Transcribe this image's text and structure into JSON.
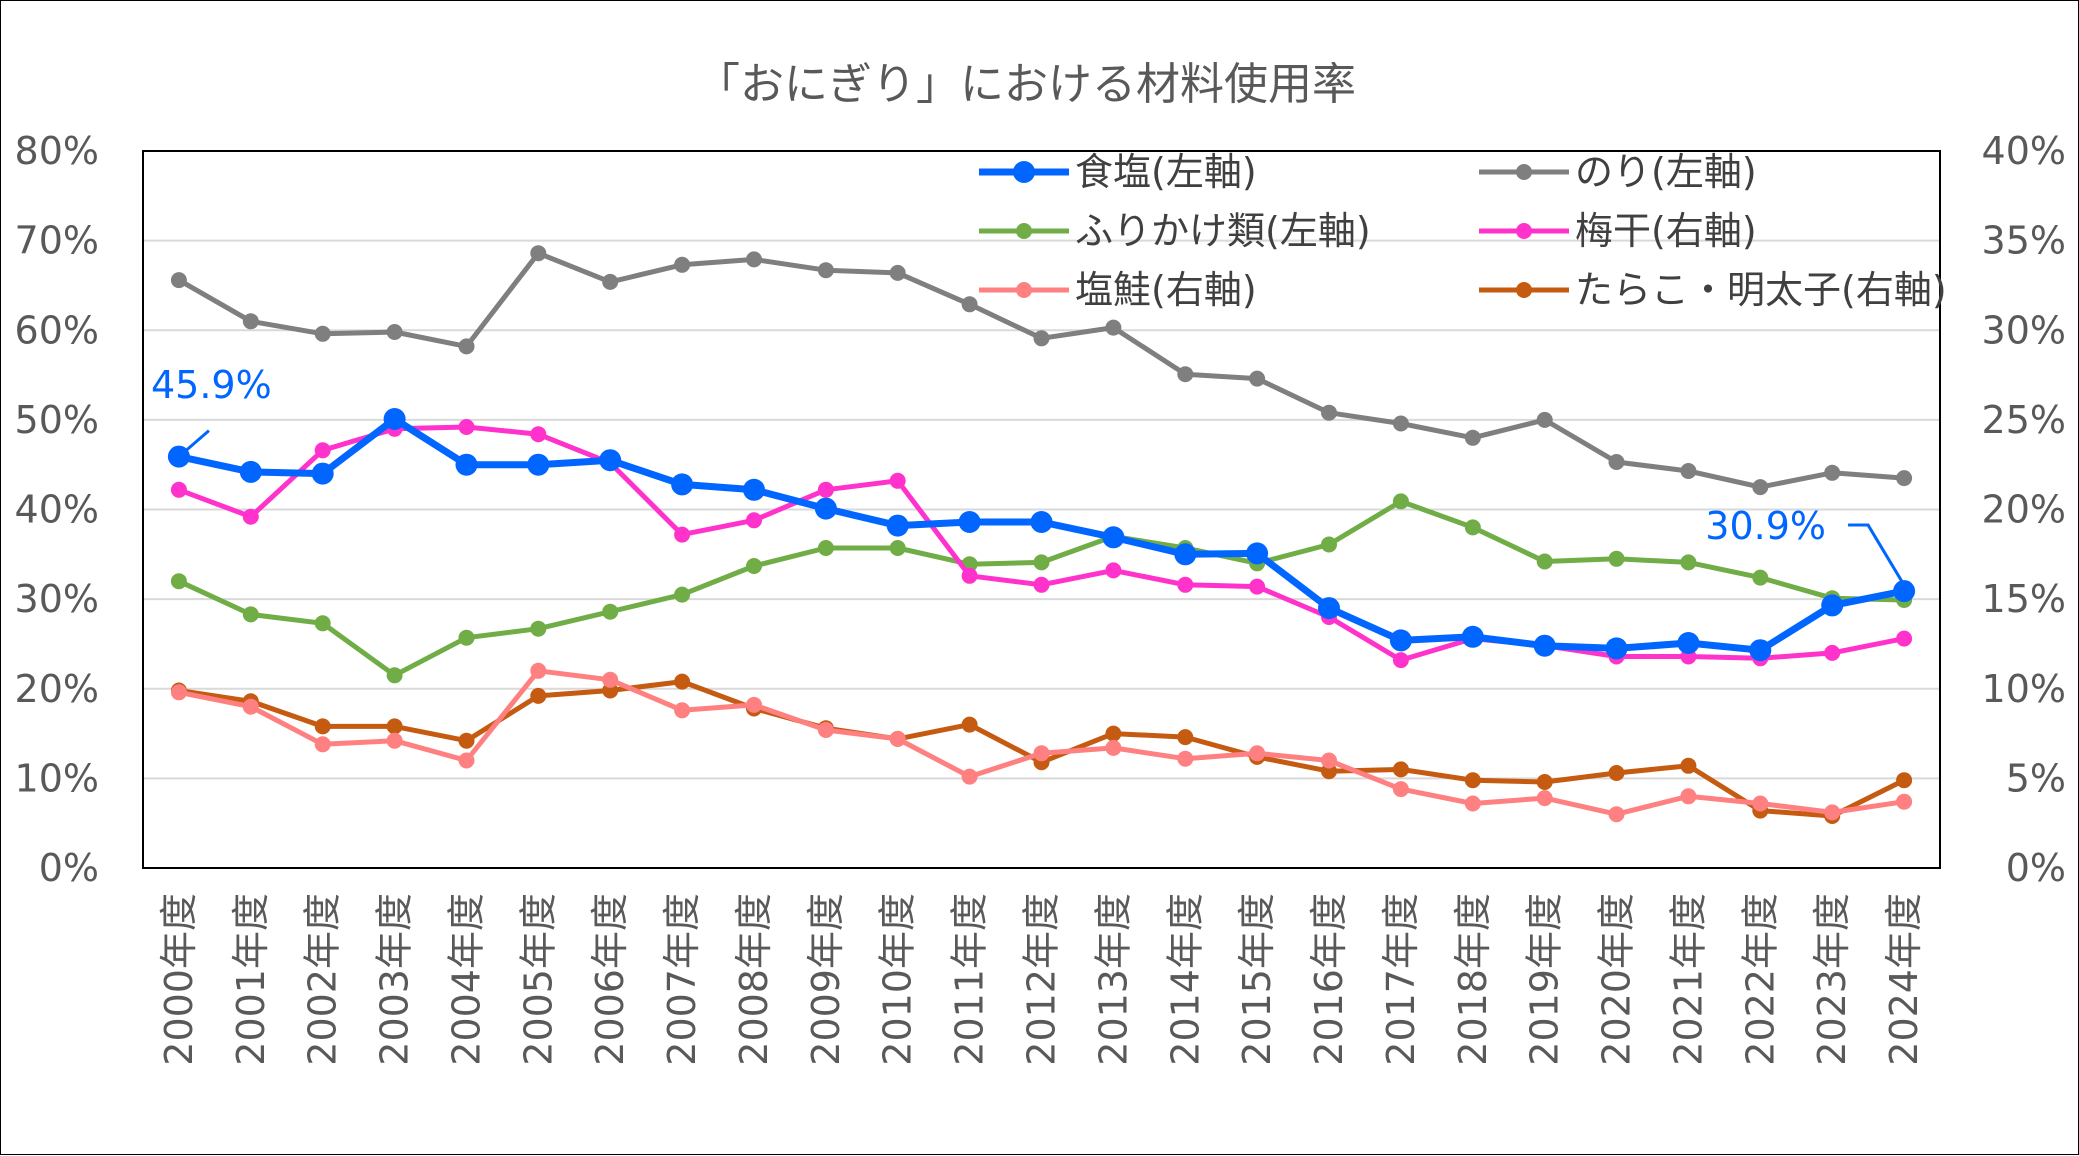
{
  "chart_data": {
    "type": "line",
    "title": "「おにぎり」における材料使用率",
    "categories": [
      "2000年度",
      "2001年度",
      "2002年度",
      "2003年度",
      "2004年度",
      "2005年度",
      "2006年度",
      "2007年度",
      "2008年度",
      "2009年度",
      "2010年度",
      "2011年度",
      "2012年度",
      "2013年度",
      "2014年度",
      "2015年度",
      "2016年度",
      "2017年度",
      "2018年度",
      "2019年度",
      "2020年度",
      "2021年度",
      "2022年度",
      "2023年度",
      "2024年度"
    ],
    "left_axis": {
      "min": 0,
      "max": 80,
      "step": 10,
      "tick_labels": [
        "0%",
        "10%",
        "20%",
        "30%",
        "40%",
        "50%",
        "60%",
        "70%",
        "80%"
      ]
    },
    "right_axis": {
      "min": 0,
      "max": 40,
      "step": 5,
      "tick_labels": [
        "0%",
        "5%",
        "10%",
        "15%",
        "20%",
        "25%",
        "30%",
        "35%",
        "40%"
      ]
    },
    "grid": true,
    "legend_position": "top-right",
    "series": [
      {
        "name": "食塩(左軸)",
        "axis": "left",
        "color": "#0066FF",
        "width": 7,
        "marker": 11,
        "values": [
          45.9,
          44.2,
          44.0,
          50.1,
          45.0,
          45.0,
          45.5,
          42.8,
          42.2,
          40.1,
          38.2,
          38.6,
          38.6,
          36.9,
          35.0,
          35.1,
          29.0,
          25.4,
          25.8,
          24.8,
          24.5,
          25.1,
          24.3,
          29.3,
          30.9
        ]
      },
      {
        "name": "のり(左軸)",
        "axis": "left",
        "color": "#7F7F7F",
        "width": 5,
        "marker": 8,
        "values": [
          65.6,
          61.0,
          59.6,
          59.8,
          58.2,
          68.6,
          65.4,
          67.3,
          67.9,
          66.7,
          66.4,
          62.9,
          59.1,
          60.3,
          55.1,
          54.6,
          50.8,
          49.6,
          48.0,
          50.0,
          45.3,
          44.3,
          42.5,
          44.1,
          43.5
        ]
      },
      {
        "name": "ふりかけ類(左軸)",
        "axis": "left",
        "color": "#70AD47",
        "width": 5,
        "marker": 8,
        "values": [
          32.0,
          28.3,
          27.3,
          21.5,
          25.7,
          26.7,
          28.6,
          30.5,
          33.7,
          35.7,
          35.7,
          33.9,
          34.1,
          37.0,
          35.7,
          34.0,
          36.1,
          40.9,
          38.0,
          34.2,
          34.5,
          34.1,
          32.4,
          30.1,
          29.9
        ]
      },
      {
        "name": "梅干(右軸)",
        "axis": "right",
        "color": "#FF33CC",
        "width": 5,
        "marker": 8,
        "values": [
          21.1,
          19.6,
          23.3,
          24.5,
          24.6,
          24.2,
          22.6,
          18.6,
          19.4,
          21.1,
          21.6,
          16.3,
          15.8,
          16.6,
          15.8,
          15.7,
          14.0,
          11.6,
          12.8,
          12.4,
          11.8,
          11.8,
          11.7,
          12.0,
          12.8
        ]
      },
      {
        "name": "塩鮭(右軸)",
        "axis": "right",
        "color": "#FF8080",
        "width": 5,
        "marker": 8,
        "values": [
          9.8,
          9.0,
          6.9,
          7.1,
          6.0,
          11.0,
          10.5,
          8.8,
          9.1,
          7.7,
          7.2,
          5.1,
          6.4,
          6.7,
          6.1,
          6.4,
          6.0,
          4.4,
          3.6,
          3.9,
          3.0,
          4.0,
          3.6,
          3.1,
          3.7
        ]
      },
      {
        "name": "たらこ・明太子(右軸)",
        "axis": "right",
        "color": "#C55A11",
        "width": 5,
        "marker": 8,
        "values": [
          9.9,
          9.3,
          7.9,
          7.9,
          7.1,
          9.6,
          9.9,
          10.4,
          8.9,
          7.8,
          7.2,
          8.0,
          5.9,
          7.5,
          7.3,
          6.2,
          5.4,
          5.5,
          4.9,
          4.8,
          5.3,
          5.7,
          3.2,
          2.9,
          4.9
        ]
      }
    ],
    "annotations": [
      {
        "text": "45.9%",
        "series": 0,
        "index": 0,
        "color": "#0066FF"
      },
      {
        "text": "30.9%",
        "series": 0,
        "index": 24,
        "color": "#0066FF"
      }
    ]
  }
}
